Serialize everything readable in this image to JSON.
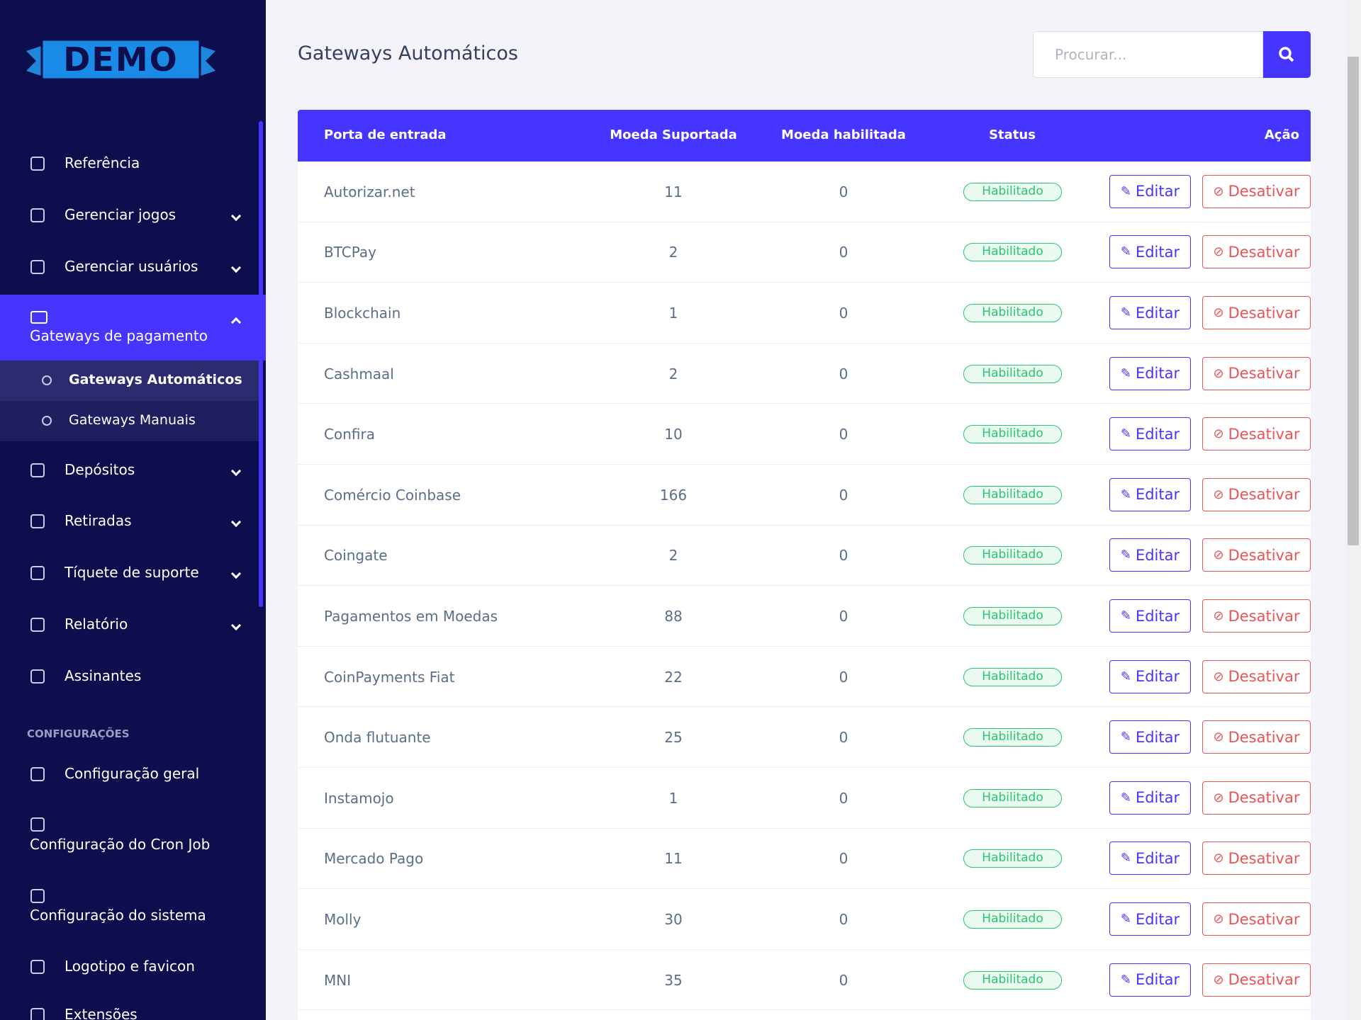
{
  "sidebar": {
    "logo": "DEMO",
    "menu": [
      "Referência",
      "Gerenciar jogos",
      "Gerenciar usuários",
      "Gateways de pagamento"
    ],
    "submenu": [
      "Gateways Automáticos",
      "Gateways Manuais"
    ],
    "menu_after": [
      "Depósitos",
      "Retiradas",
      "Tíquete de suporte",
      "Relatório",
      "Assinantes"
    ],
    "section": "CONFIGURAÇÕES",
    "settings": [
      "Configuração geral",
      "Configuração do Cron Job",
      "Configuração do sistema",
      "Logotipo e favicon",
      "Extensões"
    ]
  },
  "header": {
    "title": "Gateways Automáticos",
    "search_placeholder": "Procurar..."
  },
  "table": {
    "columns": [
      "Porta de entrada",
      "Moeda Suportada",
      "Moeda habilitada",
      "Status",
      "Ação"
    ],
    "rows": [
      [
        "Autorizar.net",
        11,
        0,
        "Habilitado"
      ],
      [
        "BTCPay",
        2,
        0,
        "Habilitado"
      ],
      [
        "Blockchain",
        1,
        0,
        "Habilitado"
      ],
      [
        "Cashmaal",
        2,
        0,
        "Habilitado"
      ],
      [
        "Confira",
        10,
        0,
        "Habilitado"
      ],
      [
        "Comércio Coinbase",
        166,
        0,
        "Habilitado"
      ],
      [
        "Coingate",
        2,
        0,
        "Habilitado"
      ],
      [
        "Pagamentos em Moedas",
        88,
        0,
        "Habilitado"
      ],
      [
        "CoinPayments Fiat",
        22,
        0,
        "Habilitado"
      ],
      [
        "Onda flutuante",
        25,
        0,
        "Habilitado"
      ],
      [
        "Instamojo",
        1,
        0,
        "Habilitado"
      ],
      [
        "Mercado Pago",
        11,
        0,
        "Habilitado"
      ],
      [
        "Molly",
        30,
        0,
        "Habilitado"
      ],
      [
        "MNI",
        35,
        0,
        "Habilitado"
      ]
    ],
    "actions": [
      "Editar",
      "Desativar"
    ]
  }
}
